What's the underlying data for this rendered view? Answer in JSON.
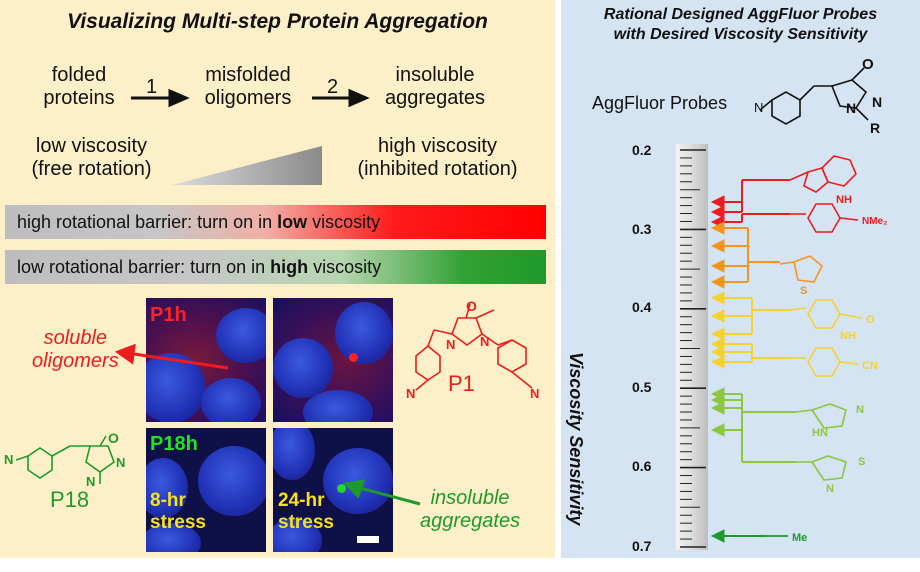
{
  "left": {
    "title": "Visualizing Multi-step Protein Aggregation",
    "stage1_line1": "folded",
    "stage1_line2": "proteins",
    "step1": "1",
    "stage2_line1": "misfolded",
    "stage2_line2": "oligomers",
    "step2": "2",
    "stage3_line1": "insoluble",
    "stage3_line2": "aggregates",
    "low_visc_line1": "low viscosity",
    "low_visc_line2": "(free rotation)",
    "high_visc_line1": "high viscosity",
    "high_visc_line2": "(inhibited rotation)",
    "bar1_pre": "high rotational barrier: turn on in ",
    "bar1_bold": "low",
    "bar1_post": " viscosity",
    "bar2_pre": "low rotational barrier: turn on in ",
    "bar2_bold": "high",
    "bar2_post": " viscosity",
    "soluble_line1": "soluble",
    "soluble_line2": "oligomers",
    "insoluble_line1": "insoluble",
    "insoluble_line2": "aggregates",
    "img_p1h": "P1h",
    "img_p18h": "P18h",
    "stress8_line1": "8-hr",
    "stress8_line2": "stress",
    "stress24_line1": "24-hr",
    "stress24_line2": "stress",
    "p1_label": "P1",
    "p18_label": "P18",
    "chem_o": "O",
    "chem_n": "N"
  },
  "right": {
    "title_line1": "Rational Designed AggFluor Probes",
    "title_line2": "with Desired Viscosity Sensitivity",
    "probes_label": "AggFluor Probes",
    "chem_o": "O",
    "chem_n": "N",
    "chem_r": "R",
    "axis_label": "Viscosity Sensitivity",
    "ticks": [
      "0.2",
      "0.3",
      "0.4",
      "0.5",
      "0.6",
      "0.7"
    ],
    "substituents": {
      "indole_nh": "NH",
      "nme2": "NMe₂",
      "thiophene_s": "S",
      "pyridone_nh": "NH",
      "pyridone_o": "O",
      "cn": "CN",
      "imidazole_hn": "HN",
      "imidazole_n": "N",
      "thiazole_s": "S",
      "thiazole_n": "N",
      "me": "Me"
    }
  },
  "colors": {
    "red": "#ee1c1c",
    "orange": "#f7941d",
    "yellow": "#f5d22d",
    "lightgreen": "#8dc63f",
    "green": "#1e9a2c"
  }
}
